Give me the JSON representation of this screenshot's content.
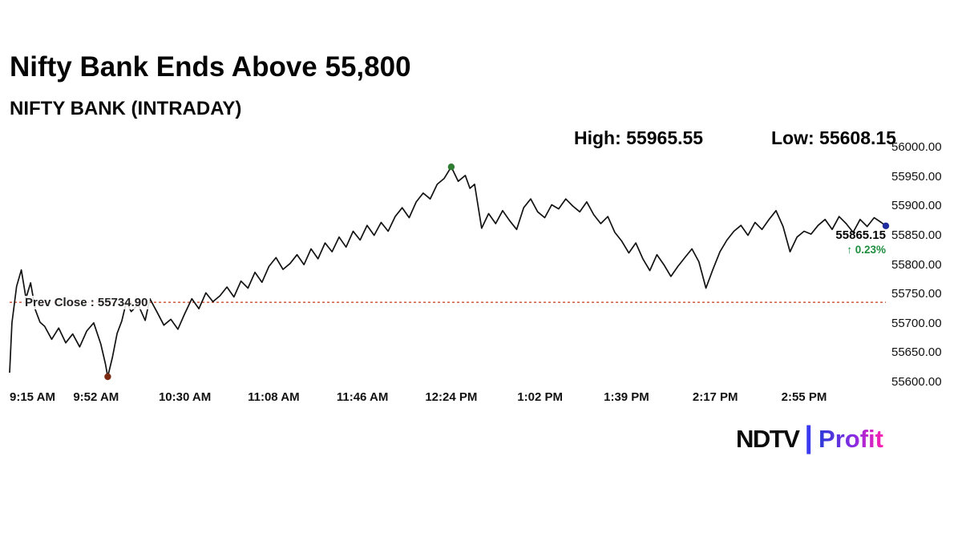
{
  "header": {
    "title": "Nifty Bank Ends Above 55,800",
    "subtitle": "NIFTY BANK (INTRADAY)"
  },
  "stats": {
    "high": "High: 55965.55",
    "low": "Low: 55608.15"
  },
  "annotations": {
    "prev_close": "Prev Close : 55734.90",
    "last_price": "55865.15",
    "change": "↑ 0.23%"
  },
  "logo": {
    "ndtv": "NDTV",
    "separator": "|",
    "profit": "Profit"
  },
  "chart_data": {
    "type": "line",
    "title": "NIFTY BANK (INTRADAY)",
    "x_unit": "minutes_since_9:15_AM",
    "session_minutes": 375,
    "ylim": [
      55600,
      56000
    ],
    "y_ticks": [
      "56000.00",
      "55950.00",
      "55900.00",
      "55850.00",
      "55800.00",
      "55750.00",
      "55700.00",
      "55650.00",
      "55600.00"
    ],
    "x_ticks": [
      {
        "t": 0,
        "label": "9:15 AM"
      },
      {
        "t": 37,
        "label": "9:52 AM"
      },
      {
        "t": 75,
        "label": "10:30 AM"
      },
      {
        "t": 113,
        "label": "11:08 AM"
      },
      {
        "t": 151,
        "label": "11:46 AM"
      },
      {
        "t": 189,
        "label": "12:24 PM"
      },
      {
        "t": 227,
        "label": "1:02 PM"
      },
      {
        "t": 264,
        "label": "1:39 PM"
      },
      {
        "t": 302,
        "label": "2:17 PM"
      },
      {
        "t": 340,
        "label": "2:55 PM"
      }
    ],
    "prev_close": 55734.9,
    "high": 55965.55,
    "low": 55608.15,
    "last": 55865.15,
    "change_pct": "0.23%",
    "line_color": "#121212",
    "prev_close_color": "#cc4a2a",
    "markers": [
      {
        "name": "high-point",
        "t": 189,
        "price": 55965.55,
        "color": "#2e7d32"
      },
      {
        "name": "low-point",
        "t": 42,
        "price": 55608.15,
        "color": "#7b2a12"
      },
      {
        "name": "last-point",
        "t": 375,
        "price": 55865.15,
        "color": "#1f2d9e"
      }
    ],
    "points": [
      [
        0,
        55615
      ],
      [
        1,
        55700
      ],
      [
        3,
        55762
      ],
      [
        5,
        55790
      ],
      [
        7,
        55742
      ],
      [
        9,
        55768
      ],
      [
        11,
        55722
      ],
      [
        13,
        55701
      ],
      [
        15,
        55694
      ],
      [
        18,
        55672
      ],
      [
        21,
        55691
      ],
      [
        24,
        55666
      ],
      [
        27,
        55681
      ],
      [
        30,
        55659
      ],
      [
        33,
        55686
      ],
      [
        36,
        55700
      ],
      [
        39,
        55664
      ],
      [
        41,
        55630
      ],
      [
        42,
        55608.15
      ],
      [
        44,
        55641
      ],
      [
        46,
        55682
      ],
      [
        48,
        55703
      ],
      [
        50,
        55736
      ],
      [
        52,
        55719
      ],
      [
        55,
        55731
      ],
      [
        58,
        55704
      ],
      [
        60,
        55741
      ],
      [
        63,
        55719
      ],
      [
        66,
        55696
      ],
      [
        69,
        55706
      ],
      [
        72,
        55689
      ],
      [
        75,
        55716
      ],
      [
        78,
        55741
      ],
      [
        81,
        55724
      ],
      [
        84,
        55751
      ],
      [
        87,
        55736
      ],
      [
        90,
        55746
      ],
      [
        93,
        55761
      ],
      [
        96,
        55744
      ],
      [
        99,
        55771
      ],
      [
        102,
        55759
      ],
      [
        105,
        55786
      ],
      [
        108,
        55769
      ],
      [
        111,
        55796
      ],
      [
        114,
        55811
      ],
      [
        117,
        55791
      ],
      [
        120,
        55801
      ],
      [
        123,
        55816
      ],
      [
        126,
        55799
      ],
      [
        129,
        55826
      ],
      [
        132,
        55809
      ],
      [
        135,
        55836
      ],
      [
        138,
        55821
      ],
      [
        141,
        55846
      ],
      [
        144,
        55829
      ],
      [
        147,
        55856
      ],
      [
        150,
        55841
      ],
      [
        153,
        55866
      ],
      [
        156,
        55849
      ],
      [
        159,
        55871
      ],
      [
        162,
        55856
      ],
      [
        165,
        55881
      ],
      [
        168,
        55896
      ],
      [
        171,
        55879
      ],
      [
        174,
        55906
      ],
      [
        177,
        55921
      ],
      [
        180,
        55911
      ],
      [
        183,
        55936
      ],
      [
        186,
        55946
      ],
      [
        189,
        55965.55
      ],
      [
        192,
        55941
      ],
      [
        195,
        55951
      ],
      [
        197,
        55929
      ],
      [
        199,
        55936
      ],
      [
        202,
        55861
      ],
      [
        205,
        55886
      ],
      [
        208,
        55869
      ],
      [
        211,
        55891
      ],
      [
        214,
        55874
      ],
      [
        217,
        55859
      ],
      [
        220,
        55896
      ],
      [
        223,
        55911
      ],
      [
        226,
        55889
      ],
      [
        229,
        55879
      ],
      [
        232,
        55901
      ],
      [
        235,
        55894
      ],
      [
        238,
        55911
      ],
      [
        241,
        55899
      ],
      [
        244,
        55889
      ],
      [
        247,
        55906
      ],
      [
        250,
        55884
      ],
      [
        253,
        55869
      ],
      [
        256,
        55881
      ],
      [
        259,
        55854
      ],
      [
        262,
        55839
      ],
      [
        265,
        55819
      ],
      [
        268,
        55836
      ],
      [
        271,
        55809
      ],
      [
        274,
        55789
      ],
      [
        277,
        55816
      ],
      [
        280,
        55799
      ],
      [
        283,
        55779
      ],
      [
        286,
        55796
      ],
      [
        289,
        55811
      ],
      [
        292,
        55826
      ],
      [
        295,
        55804
      ],
      [
        298,
        55759
      ],
      [
        301,
        55791
      ],
      [
        304,
        55821
      ],
      [
        307,
        55841
      ],
      [
        310,
        55856
      ],
      [
        313,
        55866
      ],
      [
        316,
        55849
      ],
      [
        319,
        55871
      ],
      [
        322,
        55859
      ],
      [
        325,
        55876
      ],
      [
        328,
        55891
      ],
      [
        331,
        55864
      ],
      [
        334,
        55821
      ],
      [
        337,
        55846
      ],
      [
        340,
        55856
      ],
      [
        343,
        55851
      ],
      [
        346,
        55866
      ],
      [
        349,
        55876
      ],
      [
        352,
        55859
      ],
      [
        355,
        55881
      ],
      [
        358,
        55869
      ],
      [
        361,
        55854
      ],
      [
        364,
        55876
      ],
      [
        367,
        55864
      ],
      [
        370,
        55879
      ],
      [
        373,
        55871
      ],
      [
        375,
        55865.15
      ]
    ]
  }
}
